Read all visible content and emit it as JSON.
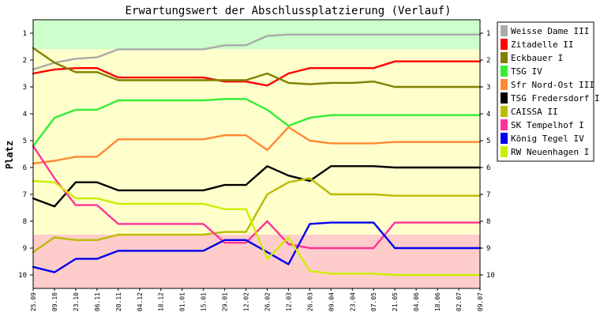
{
  "chart_data": {
    "type": "line",
    "title": "Erwartungswert der Abschlussplatzierung (Verlauf)",
    "xlabel": "",
    "ylabel": "Platz",
    "y_inverted": true,
    "ylim": [
      10.5,
      0.5
    ],
    "yticks": [
      1,
      2,
      3,
      4,
      5,
      6,
      7,
      8,
      9,
      10
    ],
    "yticks_right": true,
    "grid": false,
    "legend": "right",
    "background_bands": [
      {
        "from": 0.5,
        "to": 1.6,
        "color": "#ccffcc"
      },
      {
        "from": 1.6,
        "to": 8.5,
        "color": "#ffffcc"
      },
      {
        "from": 8.5,
        "to": 10.5,
        "color": "#ffcccc"
      }
    ],
    "categories": [
      "25.09",
      "09.10",
      "23.10",
      "06.11",
      "20.11",
      "04.12",
      "18.12",
      "01.01",
      "15.01",
      "29.01",
      "12.02",
      "26.02",
      "12.03",
      "26.03",
      "09.04",
      "23.04",
      "07.05",
      "21.05",
      "04.06",
      "18.06",
      "02.07",
      "09.07"
    ],
    "series": [
      {
        "name": "Weisse Dame III",
        "color": "#aaaaaa",
        "values": [
          2.35,
          2.1,
          1.95,
          1.9,
          1.6,
          1.6,
          1.6,
          1.6,
          1.6,
          1.45,
          1.45,
          1.1,
          1.05,
          1.05,
          1.05,
          1.05,
          1.05,
          1.05,
          1.05,
          1.05,
          1.05,
          1.05
        ]
      },
      {
        "name": "Zitadelle II",
        "color": "#ff0000",
        "values": [
          2.5,
          2.35,
          2.3,
          2.3,
          2.65,
          2.65,
          2.65,
          2.65,
          2.65,
          2.8,
          2.8,
          2.95,
          2.5,
          2.3,
          2.3,
          2.3,
          2.3,
          2.05,
          2.05,
          2.05,
          2.05,
          2.05
        ]
      },
      {
        "name": "Eckbauer I",
        "color": "#808000",
        "values": [
          1.55,
          2.1,
          2.45,
          2.45,
          2.75,
          2.75,
          2.75,
          2.75,
          2.75,
          2.75,
          2.75,
          2.5,
          2.85,
          2.9,
          2.85,
          2.85,
          2.8,
          3.0,
          3.0,
          3.0,
          3.0,
          3.0
        ]
      },
      {
        "name": "TSG IV",
        "color": "#33ee33",
        "values": [
          5.2,
          4.15,
          3.85,
          3.85,
          3.5,
          3.5,
          3.5,
          3.5,
          3.5,
          3.45,
          3.45,
          3.85,
          4.45,
          4.15,
          4.05,
          4.05,
          4.05,
          4.05,
          4.05,
          4.05,
          4.05,
          4.05
        ]
      },
      {
        "name": "Sfr Nord-Ost III",
        "color": "#ff8833",
        "values": [
          5.85,
          5.75,
          5.6,
          5.6,
          4.95,
          4.95,
          4.95,
          4.95,
          4.95,
          4.8,
          4.8,
          5.35,
          4.5,
          5.0,
          5.1,
          5.1,
          5.1,
          5.05,
          5.05,
          5.05,
          5.05,
          5.05
        ]
      },
      {
        "name": "TSG Fredersdorf I",
        "color": "#000000",
        "values": [
          7.15,
          7.45,
          6.55,
          6.55,
          6.85,
          6.85,
          6.85,
          6.85,
          6.85,
          6.65,
          6.65,
          5.95,
          6.3,
          6.5,
          5.95,
          5.95,
          5.95,
          6.0,
          6.0,
          6.0,
          6.0,
          6.0
        ]
      },
      {
        "name": "CAISSA II",
        "color": "#bbbb00",
        "values": [
          9.15,
          8.6,
          8.7,
          8.7,
          8.5,
          8.5,
          8.5,
          8.5,
          8.5,
          8.4,
          8.4,
          7.0,
          6.55,
          6.4,
          7.0,
          7.0,
          7.0,
          7.05,
          7.05,
          7.05,
          7.05,
          7.05
        ]
      },
      {
        "name": "SK Tempelhof I",
        "color": "#ff3399",
        "values": [
          5.2,
          6.4,
          7.4,
          7.4,
          8.1,
          8.1,
          8.1,
          8.1,
          8.1,
          8.8,
          8.8,
          8.0,
          8.85,
          9.0,
          9.0,
          9.0,
          9.0,
          8.05,
          8.05,
          8.05,
          8.05,
          8.05
        ]
      },
      {
        "name": "König Tegel IV",
        "color": "#0000ee",
        "values": [
          9.7,
          9.9,
          9.4,
          9.4,
          9.1,
          9.1,
          9.1,
          9.1,
          9.1,
          8.7,
          8.7,
          9.15,
          9.6,
          8.1,
          8.05,
          8.05,
          8.05,
          9.0,
          9.0,
          9.0,
          9.0,
          9.0
        ]
      },
      {
        "name": "RW Neuenhagen I",
        "color": "#ccee00",
        "values": [
          6.5,
          6.55,
          7.15,
          7.15,
          7.35,
          7.35,
          7.35,
          7.35,
          7.35,
          7.55,
          7.55,
          9.4,
          8.6,
          9.85,
          9.95,
          9.95,
          9.95,
          10.0,
          10.0,
          10.0,
          10.0,
          10.0
        ]
      }
    ]
  }
}
